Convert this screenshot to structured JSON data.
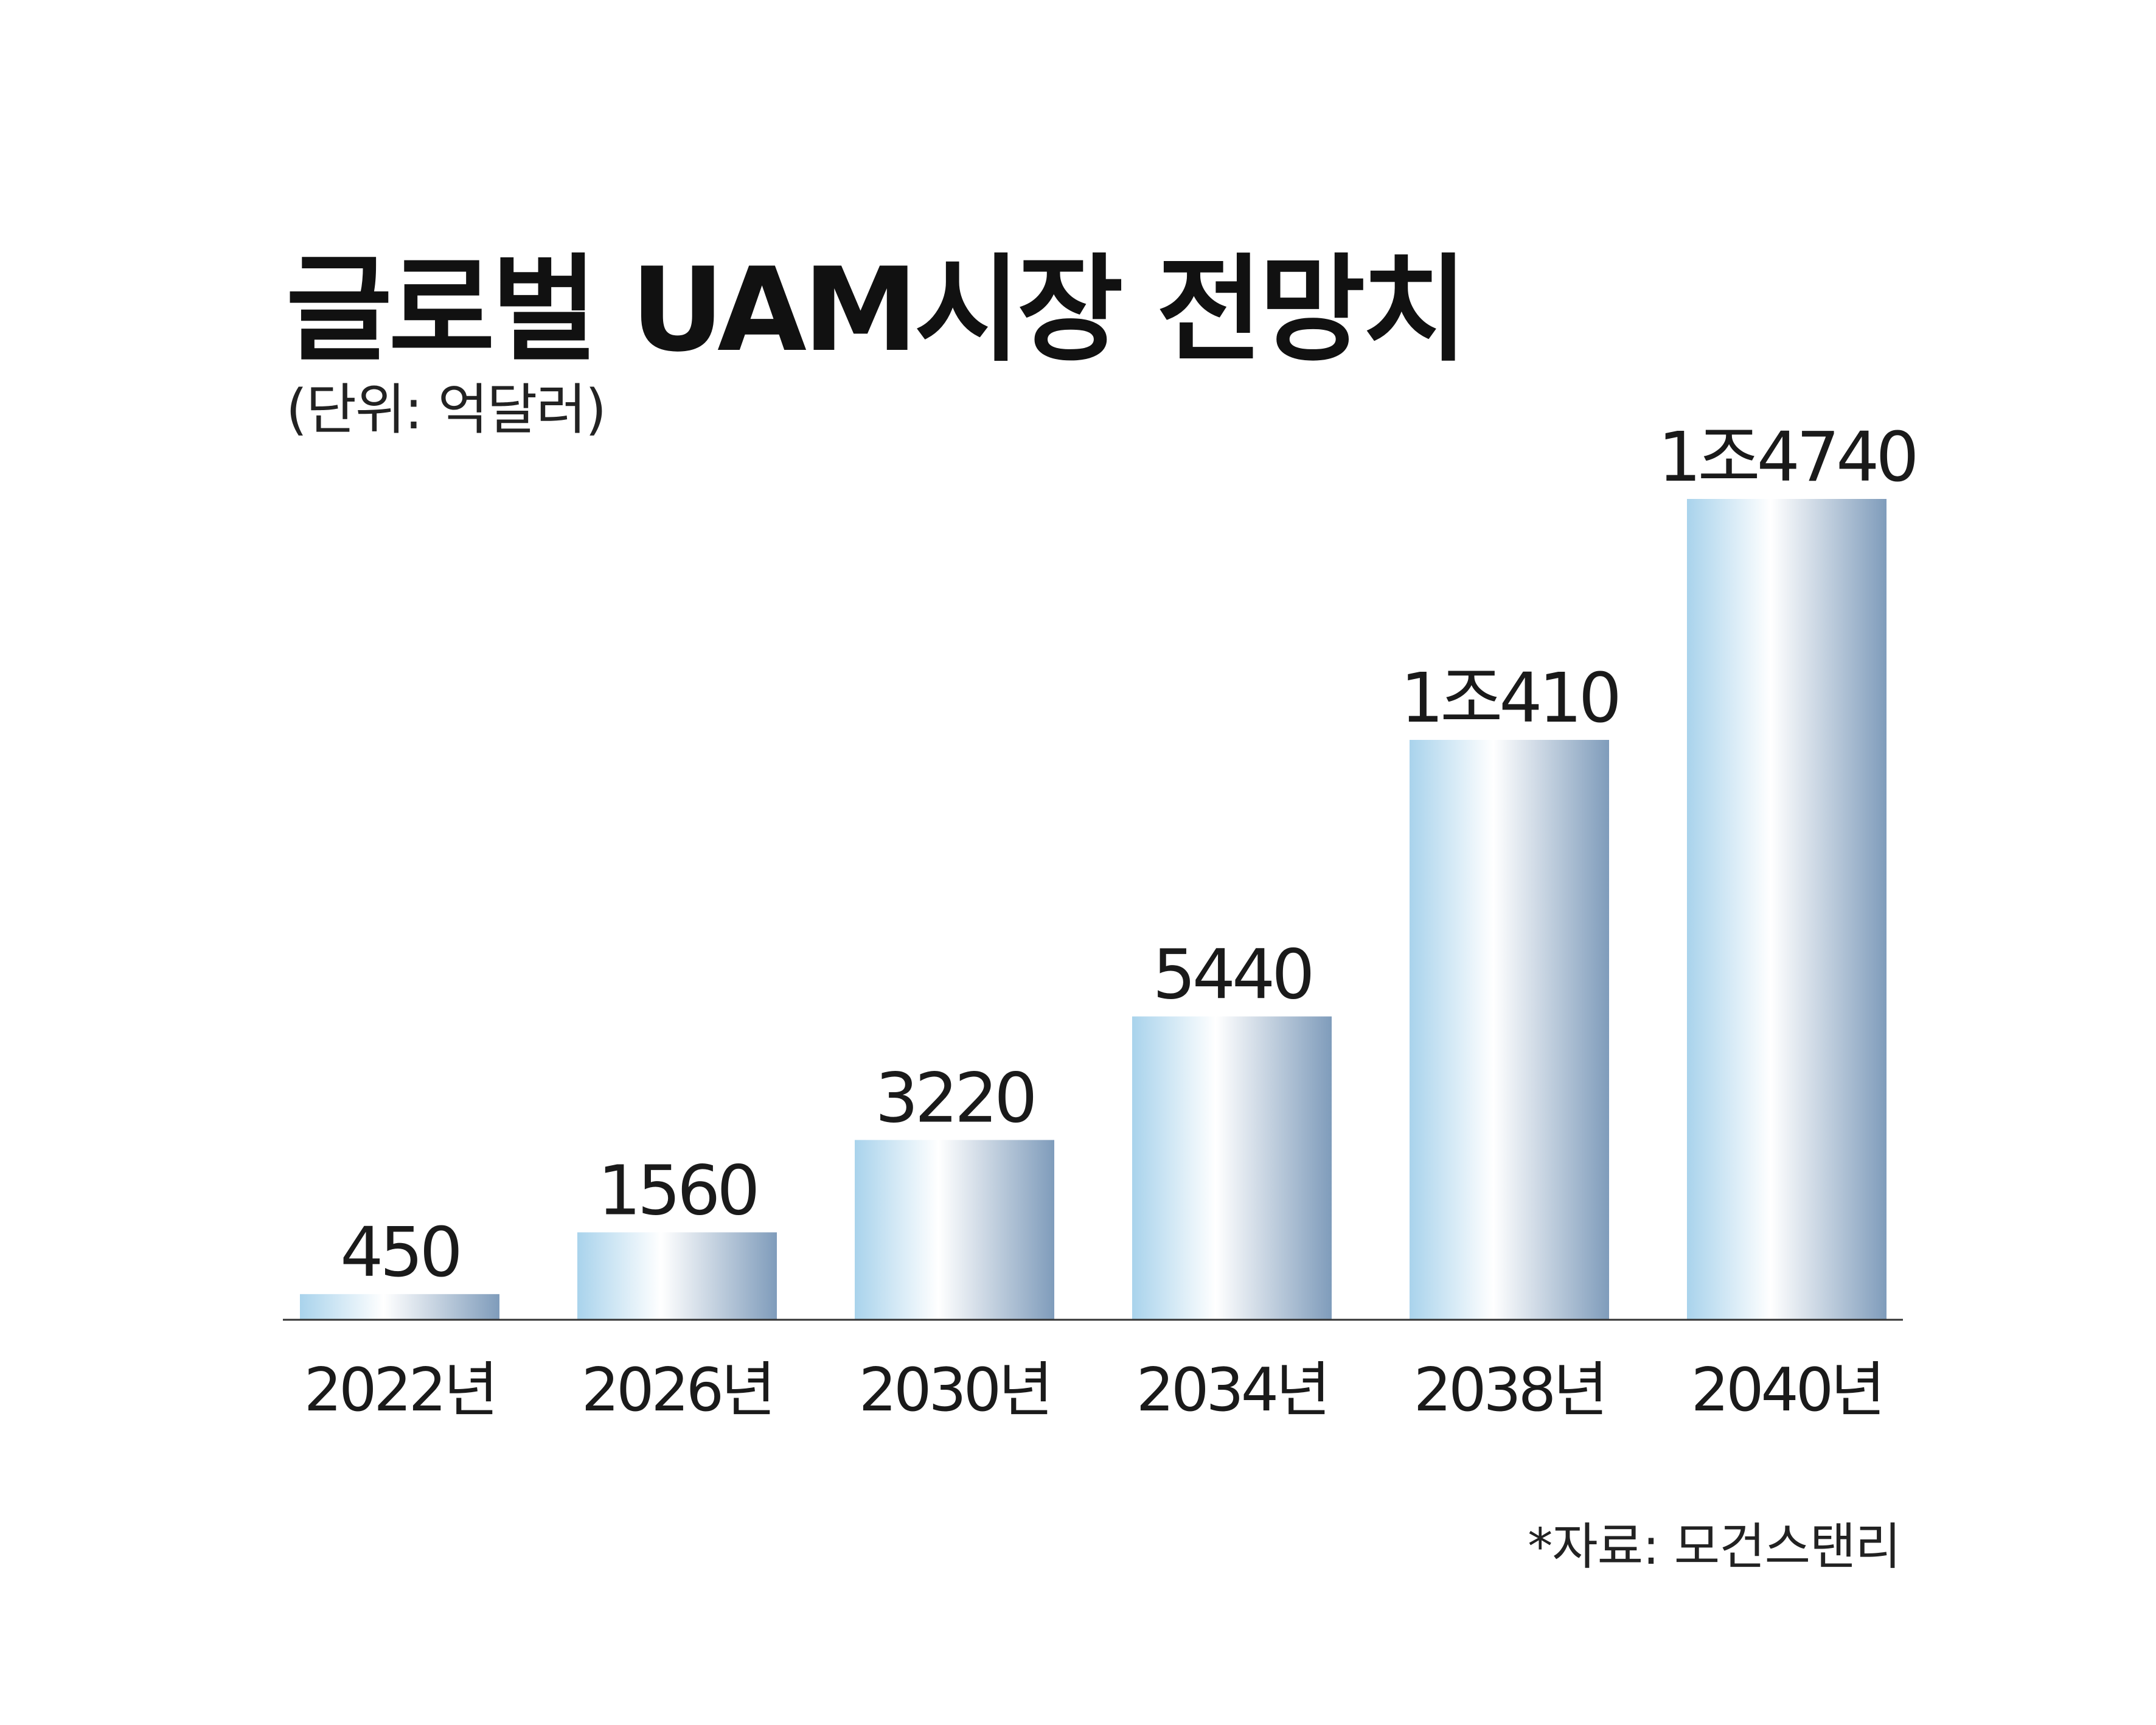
{
  "chart_data": {
    "type": "bar",
    "title": "글로벌 UAM시장 전망치",
    "unit_note": "(단위: 억달러)",
    "source_note": "*자료: 모건스탠리",
    "categories": [
      "2022년",
      "2026년",
      "2030년",
      "2034년",
      "2038년",
      "2040년"
    ],
    "values": [
      450,
      1560,
      3220,
      5440,
      10410,
      14740
    ],
    "value_labels": [
      "450",
      "1560",
      "3220",
      "5440",
      "1조410",
      "1조4740"
    ],
    "ylim": [
      0,
      14740
    ],
    "grid": false,
    "legend": "none",
    "colors": {
      "bar_gradient": [
        "#a9d3ec",
        "#ffffff",
        "#7f9cbb"
      ],
      "axis": "#333333",
      "text": "#1a1a1a"
    }
  }
}
